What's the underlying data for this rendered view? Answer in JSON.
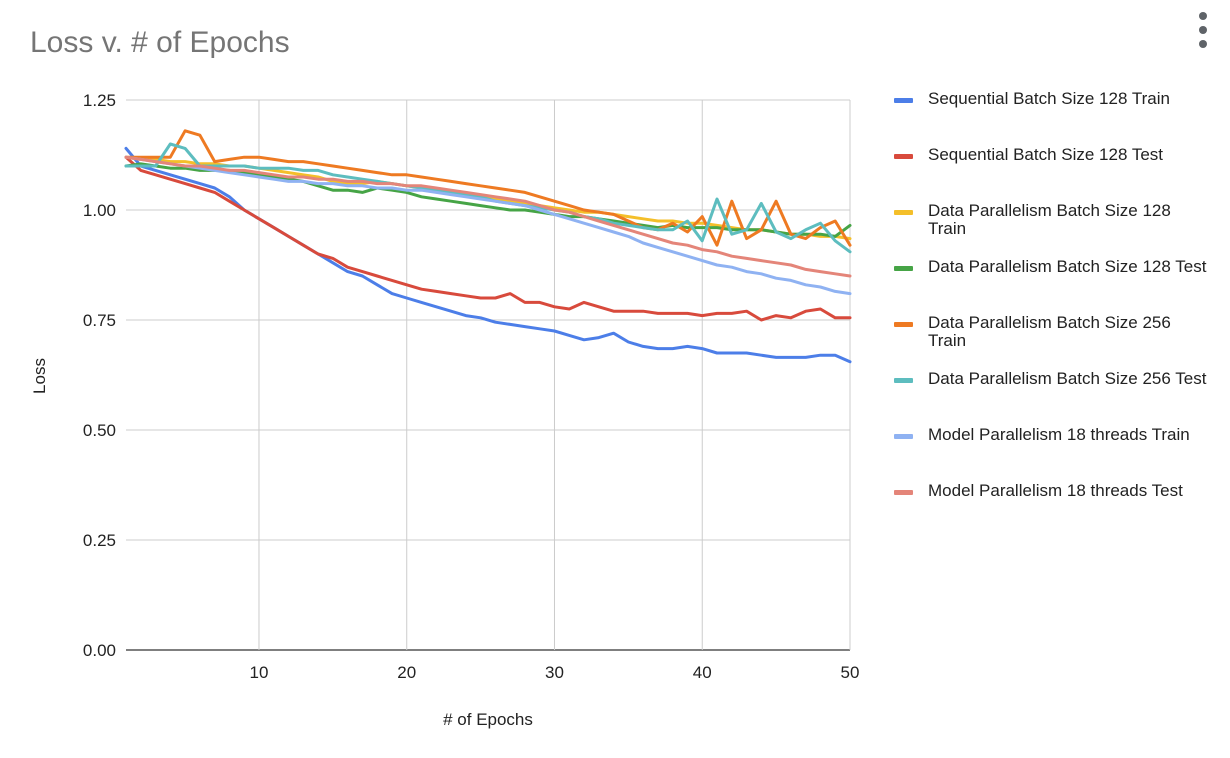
{
  "chart_data": {
    "type": "line",
    "title": "Loss v. # of Epochs",
    "xlabel": "# of Epochs",
    "ylabel": "Loss",
    "xlim": [
      1,
      50
    ],
    "ylim": [
      0,
      1.25
    ],
    "x_ticks": [
      10,
      20,
      30,
      40,
      50
    ],
    "y_ticks": [
      "0.00",
      "0.25",
      "0.50",
      "0.75",
      "1.00",
      "1.25"
    ],
    "grid": true,
    "legend_position": "right",
    "series": [
      {
        "name": "Sequential Batch Size 128 Train",
        "color": "#4c7ee8",
        "values": [
          1.14,
          1.1,
          1.09,
          1.08,
          1.07,
          1.06,
          1.05,
          1.03,
          1.0,
          0.98,
          0.96,
          0.94,
          0.92,
          0.9,
          0.88,
          0.86,
          0.85,
          0.83,
          0.81,
          0.8,
          0.79,
          0.78,
          0.77,
          0.76,
          0.755,
          0.745,
          0.74,
          0.735,
          0.73,
          0.725,
          0.715,
          0.705,
          0.71,
          0.72,
          0.7,
          0.69,
          0.685,
          0.685,
          0.69,
          0.685,
          0.675,
          0.675,
          0.675,
          0.67,
          0.665,
          0.665,
          0.665,
          0.67,
          0.67,
          0.655
        ]
      },
      {
        "name": "Sequential Batch Size 128 Test",
        "color": "#d84a3c",
        "values": [
          1.12,
          1.09,
          1.08,
          1.07,
          1.06,
          1.05,
          1.04,
          1.02,
          1.0,
          0.98,
          0.96,
          0.94,
          0.92,
          0.9,
          0.89,
          0.87,
          0.86,
          0.85,
          0.84,
          0.83,
          0.82,
          0.815,
          0.81,
          0.805,
          0.8,
          0.8,
          0.81,
          0.79,
          0.79,
          0.78,
          0.775,
          0.79,
          0.78,
          0.77,
          0.77,
          0.77,
          0.765,
          0.765,
          0.765,
          0.76,
          0.765,
          0.765,
          0.77,
          0.75,
          0.76,
          0.755,
          0.77,
          0.775,
          0.755,
          0.755
        ]
      },
      {
        "name": "Data Parallelism Batch Size 128 Train",
        "color": "#f4bf2a",
        "values": [
          1.12,
          1.115,
          1.115,
          1.11,
          1.11,
          1.105,
          1.105,
          1.1,
          1.1,
          1.095,
          1.09,
          1.085,
          1.08,
          1.075,
          1.065,
          1.06,
          1.06,
          1.065,
          1.06,
          1.055,
          1.05,
          1.045,
          1.04,
          1.035,
          1.03,
          1.025,
          1.02,
          1.015,
          1.01,
          1.005,
          1.0,
          0.995,
          0.995,
          0.99,
          0.985,
          0.98,
          0.975,
          0.975,
          0.97,
          0.97,
          0.965,
          0.96,
          0.955,
          0.955,
          0.95,
          0.945,
          0.945,
          0.94,
          0.94,
          0.935
        ]
      },
      {
        "name": "Data Parallelism Batch Size 128 Test",
        "color": "#46a446",
        "values": [
          1.1,
          1.105,
          1.1,
          1.095,
          1.095,
          1.09,
          1.09,
          1.09,
          1.085,
          1.08,
          1.075,
          1.07,
          1.065,
          1.055,
          1.045,
          1.045,
          1.04,
          1.05,
          1.045,
          1.04,
          1.03,
          1.025,
          1.02,
          1.015,
          1.01,
          1.005,
          1.0,
          1.0,
          0.995,
          0.99,
          0.985,
          0.985,
          0.98,
          0.975,
          0.97,
          0.965,
          0.96,
          0.965,
          0.96,
          0.96,
          0.96,
          0.955,
          0.955,
          0.955,
          0.95,
          0.945,
          0.945,
          0.945,
          0.94,
          0.965
        ]
      },
      {
        "name": "Data Parallelism Batch Size 256 Train",
        "color": "#ee7a22",
        "values": [
          1.12,
          1.12,
          1.12,
          1.12,
          1.18,
          1.17,
          1.11,
          1.115,
          1.12,
          1.12,
          1.115,
          1.11,
          1.11,
          1.105,
          1.1,
          1.095,
          1.09,
          1.085,
          1.08,
          1.08,
          1.075,
          1.07,
          1.065,
          1.06,
          1.055,
          1.05,
          1.045,
          1.04,
          1.03,
          1.02,
          1.01,
          1.0,
          0.995,
          0.99,
          0.975,
          0.96,
          0.955,
          0.97,
          0.95,
          0.985,
          0.92,
          1.02,
          0.935,
          0.955,
          1.02,
          0.945,
          0.935,
          0.96,
          0.975,
          0.92
        ]
      },
      {
        "name": "Data Parallelism Batch Size 256 Test",
        "color": "#5dbdbf",
        "values": [
          1.1,
          1.1,
          1.1,
          1.15,
          1.14,
          1.1,
          1.1,
          1.1,
          1.1,
          1.095,
          1.095,
          1.095,
          1.09,
          1.09,
          1.08,
          1.075,
          1.07,
          1.065,
          1.06,
          1.055,
          1.05,
          1.045,
          1.04,
          1.035,
          1.03,
          1.02,
          1.015,
          1.01,
          1.005,
          1.0,
          0.995,
          0.985,
          0.98,
          0.97,
          0.965,
          0.96,
          0.955,
          0.955,
          0.975,
          0.93,
          1.025,
          0.945,
          0.955,
          1.015,
          0.95,
          0.935,
          0.955,
          0.97,
          0.93,
          0.905
        ]
      },
      {
        "name": "Model Parallelism 18 threads Train",
        "color": "#8fb2f2",
        "values": [
          1.12,
          1.115,
          1.11,
          1.105,
          1.1,
          1.095,
          1.09,
          1.085,
          1.08,
          1.075,
          1.07,
          1.065,
          1.065,
          1.06,
          1.06,
          1.055,
          1.055,
          1.05,
          1.05,
          1.045,
          1.045,
          1.04,
          1.035,
          1.03,
          1.025,
          1.02,
          1.015,
          1.01,
          1.0,
          0.99,
          0.98,
          0.97,
          0.96,
          0.95,
          0.94,
          0.925,
          0.915,
          0.905,
          0.895,
          0.885,
          0.875,
          0.87,
          0.86,
          0.855,
          0.845,
          0.84,
          0.83,
          0.825,
          0.815,
          0.81
        ]
      },
      {
        "name": "Model Parallelism 18 threads Test",
        "color": "#e48579",
        "values": [
          1.12,
          1.115,
          1.11,
          1.105,
          1.1,
          1.1,
          1.095,
          1.09,
          1.09,
          1.085,
          1.08,
          1.075,
          1.075,
          1.07,
          1.07,
          1.065,
          1.065,
          1.06,
          1.06,
          1.055,
          1.055,
          1.05,
          1.045,
          1.04,
          1.035,
          1.03,
          1.025,
          1.02,
          1.01,
          1.0,
          0.995,
          0.985,
          0.975,
          0.965,
          0.955,
          0.945,
          0.935,
          0.925,
          0.92,
          0.91,
          0.905,
          0.895,
          0.89,
          0.885,
          0.88,
          0.875,
          0.865,
          0.86,
          0.855,
          0.85
        ]
      }
    ]
  }
}
